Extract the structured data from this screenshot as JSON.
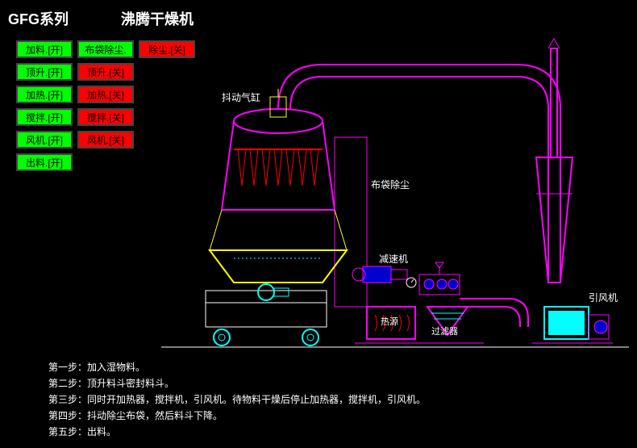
{
  "title": {
    "series": "GFG系列",
    "main": "沸腾干燥机"
  },
  "buttons": [
    [
      {
        "label": "加料.[开]",
        "color": "green"
      },
      {
        "label": "布袋除尘.[开]",
        "color": "green"
      },
      {
        "label": "除尘.[关]",
        "color": "red"
      }
    ],
    [
      {
        "label": "顶升.[开]",
        "color": "green"
      },
      {
        "label": "顶升.[关]",
        "color": "red"
      }
    ],
    [
      {
        "label": "加热.[开]",
        "color": "green"
      },
      {
        "label": "加热.[关]",
        "color": "red"
      }
    ],
    [
      {
        "label": "搅拌.[开]",
        "color": "green"
      },
      {
        "label": "搅拌.[关]",
        "color": "red"
      }
    ],
    [
      {
        "label": "风机.[开]",
        "color": "green"
      },
      {
        "label": "风机.[关]",
        "color": "red"
      }
    ],
    [
      {
        "label": "出料.[开]",
        "color": "green"
      }
    ]
  ],
  "labels": {
    "shake_cylinder": "抖动气缸",
    "bag_dust": "布袋除尘",
    "reducer": "减速机",
    "heat_source": "热源",
    "filter": "过滤器",
    "fan": "引风机"
  },
  "steps": [
    "第一步：加入湿物料。",
    "第二步：顶升料斗密封料斗。",
    "第三步：同时开加热器，搅拌机，引风机。待物料干燥后停止加热器，搅拌机，引风机。",
    "第四步：抖动除尘布袋，然后料斗下降。",
    "第五步：出料。"
  ],
  "colors": {
    "magenta": "#ff00ff",
    "yellow": "#ffff00",
    "cyan": "#00ffff",
    "red": "#ff0000",
    "white": "#ffffff",
    "green": "#00ff00",
    "blue": "#0000cc"
  }
}
